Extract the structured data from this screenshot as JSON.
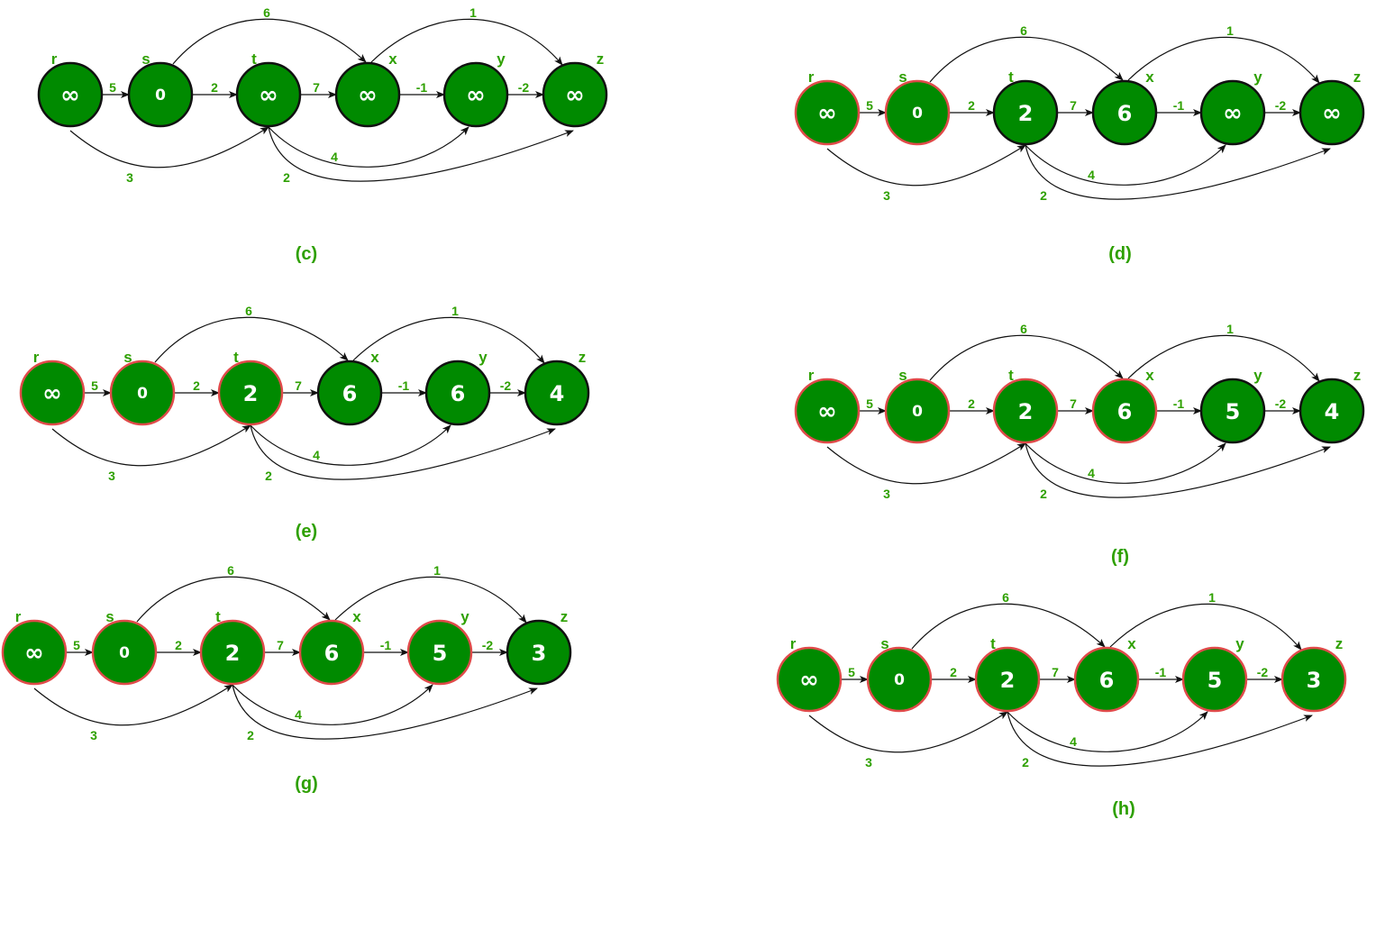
{
  "colors": {
    "node_fill": "#008a00",
    "unvisited_stroke": "#111111",
    "visited_stroke": "#e04a4a",
    "text_green": "#2ea000",
    "value_text": "#ffffff",
    "edge": "#111111"
  },
  "node_names": [
    "r",
    "s",
    "t",
    "x",
    "y",
    "z"
  ],
  "edges": [
    {
      "from": "r",
      "to": "s",
      "weight": "5"
    },
    {
      "from": "s",
      "to": "t",
      "weight": "2"
    },
    {
      "from": "t",
      "to": "x",
      "weight": "7"
    },
    {
      "from": "x",
      "to": "y",
      "weight": "-1"
    },
    {
      "from": "y",
      "to": "z",
      "weight": "-2"
    },
    {
      "from": "s",
      "to": "x",
      "weight": "6"
    },
    {
      "from": "x",
      "to": "z",
      "weight": "1"
    },
    {
      "from": "r",
      "to": "t",
      "weight": "3"
    },
    {
      "from": "t",
      "to": "y",
      "weight": "4"
    },
    {
      "from": "t",
      "to": "z",
      "weight": "2"
    }
  ],
  "panels": [
    {
      "caption": "(c)",
      "values": [
        "∞",
        "0",
        "∞",
        "∞",
        "∞",
        "∞"
      ],
      "visited": [
        false,
        false,
        false,
        false,
        false,
        false
      ]
    },
    {
      "caption": "(d)",
      "values": [
        "∞",
        "0",
        "2",
        "6",
        "∞",
        "∞"
      ],
      "visited": [
        true,
        true,
        false,
        false,
        false,
        false
      ]
    },
    {
      "caption": "(e)",
      "values": [
        "∞",
        "0",
        "2",
        "6",
        "6",
        "4"
      ],
      "visited": [
        true,
        true,
        true,
        false,
        false,
        false
      ]
    },
    {
      "caption": "(f)",
      "values": [
        "∞",
        "0",
        "2",
        "6",
        "5",
        "4"
      ],
      "visited": [
        true,
        true,
        true,
        true,
        false,
        false
      ]
    },
    {
      "caption": "(g)",
      "values": [
        "∞",
        "0",
        "2",
        "6",
        "5",
        "3"
      ],
      "visited": [
        true,
        true,
        true,
        true,
        true,
        false
      ]
    },
    {
      "caption": "(h)",
      "values": [
        "∞",
        "0",
        "2",
        "6",
        "5",
        "3"
      ],
      "visited": [
        true,
        true,
        true,
        true,
        true,
        true
      ]
    }
  ]
}
